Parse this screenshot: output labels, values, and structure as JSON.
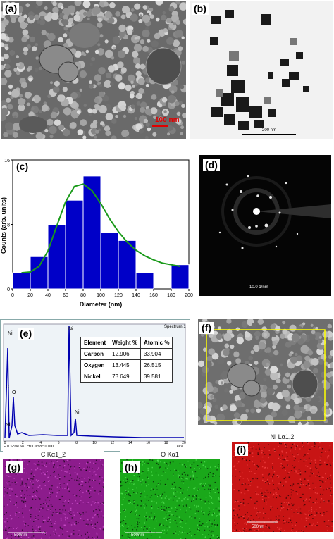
{
  "panels": {
    "a": {
      "label": "(a)",
      "scale": "100 nm"
    },
    "b": {
      "label": "(b)",
      "scale": "200 nm"
    },
    "c": {
      "label": "(c)"
    },
    "d": {
      "label": "(d)",
      "scale": "10.0 1/nm"
    },
    "e": {
      "label": "(e)",
      "spectrum_label": "Spectrum 1",
      "footer_left": "Full Scale 687 cts Cursor: 0.000",
      "footer_right": "keV",
      "peak_labels": [
        "C",
        "O",
        "Ni",
        "Ni",
        "Ni",
        "Ni"
      ]
    },
    "f": {
      "label": "(f)"
    },
    "g": {
      "label": "(g)",
      "title": "C Kα1_2",
      "scale": "500nm"
    },
    "h": {
      "label": "(h)",
      "title": "O Kα1",
      "scale": "500nm"
    },
    "i": {
      "label": "(i)",
      "title": "Ni Lα1,2",
      "scale": "500nm"
    }
  },
  "edx_table": {
    "headers": [
      "Element",
      "Weight %",
      "Atomic %"
    ],
    "rows": [
      [
        "Carbon",
        "12.906",
        "33.904"
      ],
      [
        "Oxygen",
        "13.445",
        "26.515"
      ],
      [
        "Nickel",
        "73.649",
        "39.581"
      ]
    ]
  },
  "edx_axis": {
    "ticks": [
      "0",
      "2",
      "4",
      "6",
      "8",
      "10",
      "12",
      "14",
      "16",
      "18",
      "20"
    ]
  },
  "colors": {
    "bar": "#0000c8",
    "fit": "#1a9a1a",
    "c_map": "#a020a0",
    "o_map": "#18b418",
    "ni_map": "#cc1a1a"
  },
  "chart_data": {
    "type": "bar",
    "xlabel": "Diameter (nm)",
    "ylabel": "Counts (arb. units)",
    "xlim": [
      0,
      200
    ],
    "ylim": [
      0,
      16
    ],
    "x_ticks": [
      0,
      20,
      40,
      60,
      80,
      100,
      120,
      140,
      160,
      180,
      200
    ],
    "y_ticks": [
      0,
      8,
      16
    ],
    "bin_width": 20,
    "bin_centers": [
      10,
      30,
      50,
      70,
      90,
      110,
      130,
      150,
      190
    ],
    "values": [
      2,
      4,
      8,
      11,
      14,
      7,
      6,
      2,
      3
    ],
    "fit_curve": {
      "x": [
        10,
        20,
        30,
        40,
        50,
        60,
        70,
        80,
        90,
        100,
        110,
        120,
        130,
        140,
        150,
        160,
        170,
        180,
        190
      ],
      "y": [
        2,
        2.1,
        2.8,
        4.7,
        7.8,
        10.8,
        12.7,
        13.0,
        12.2,
        10.6,
        8.7,
        7.1,
        5.8,
        4.8,
        4.1,
        3.6,
        3.2,
        3.0,
        2.8
      ]
    }
  }
}
